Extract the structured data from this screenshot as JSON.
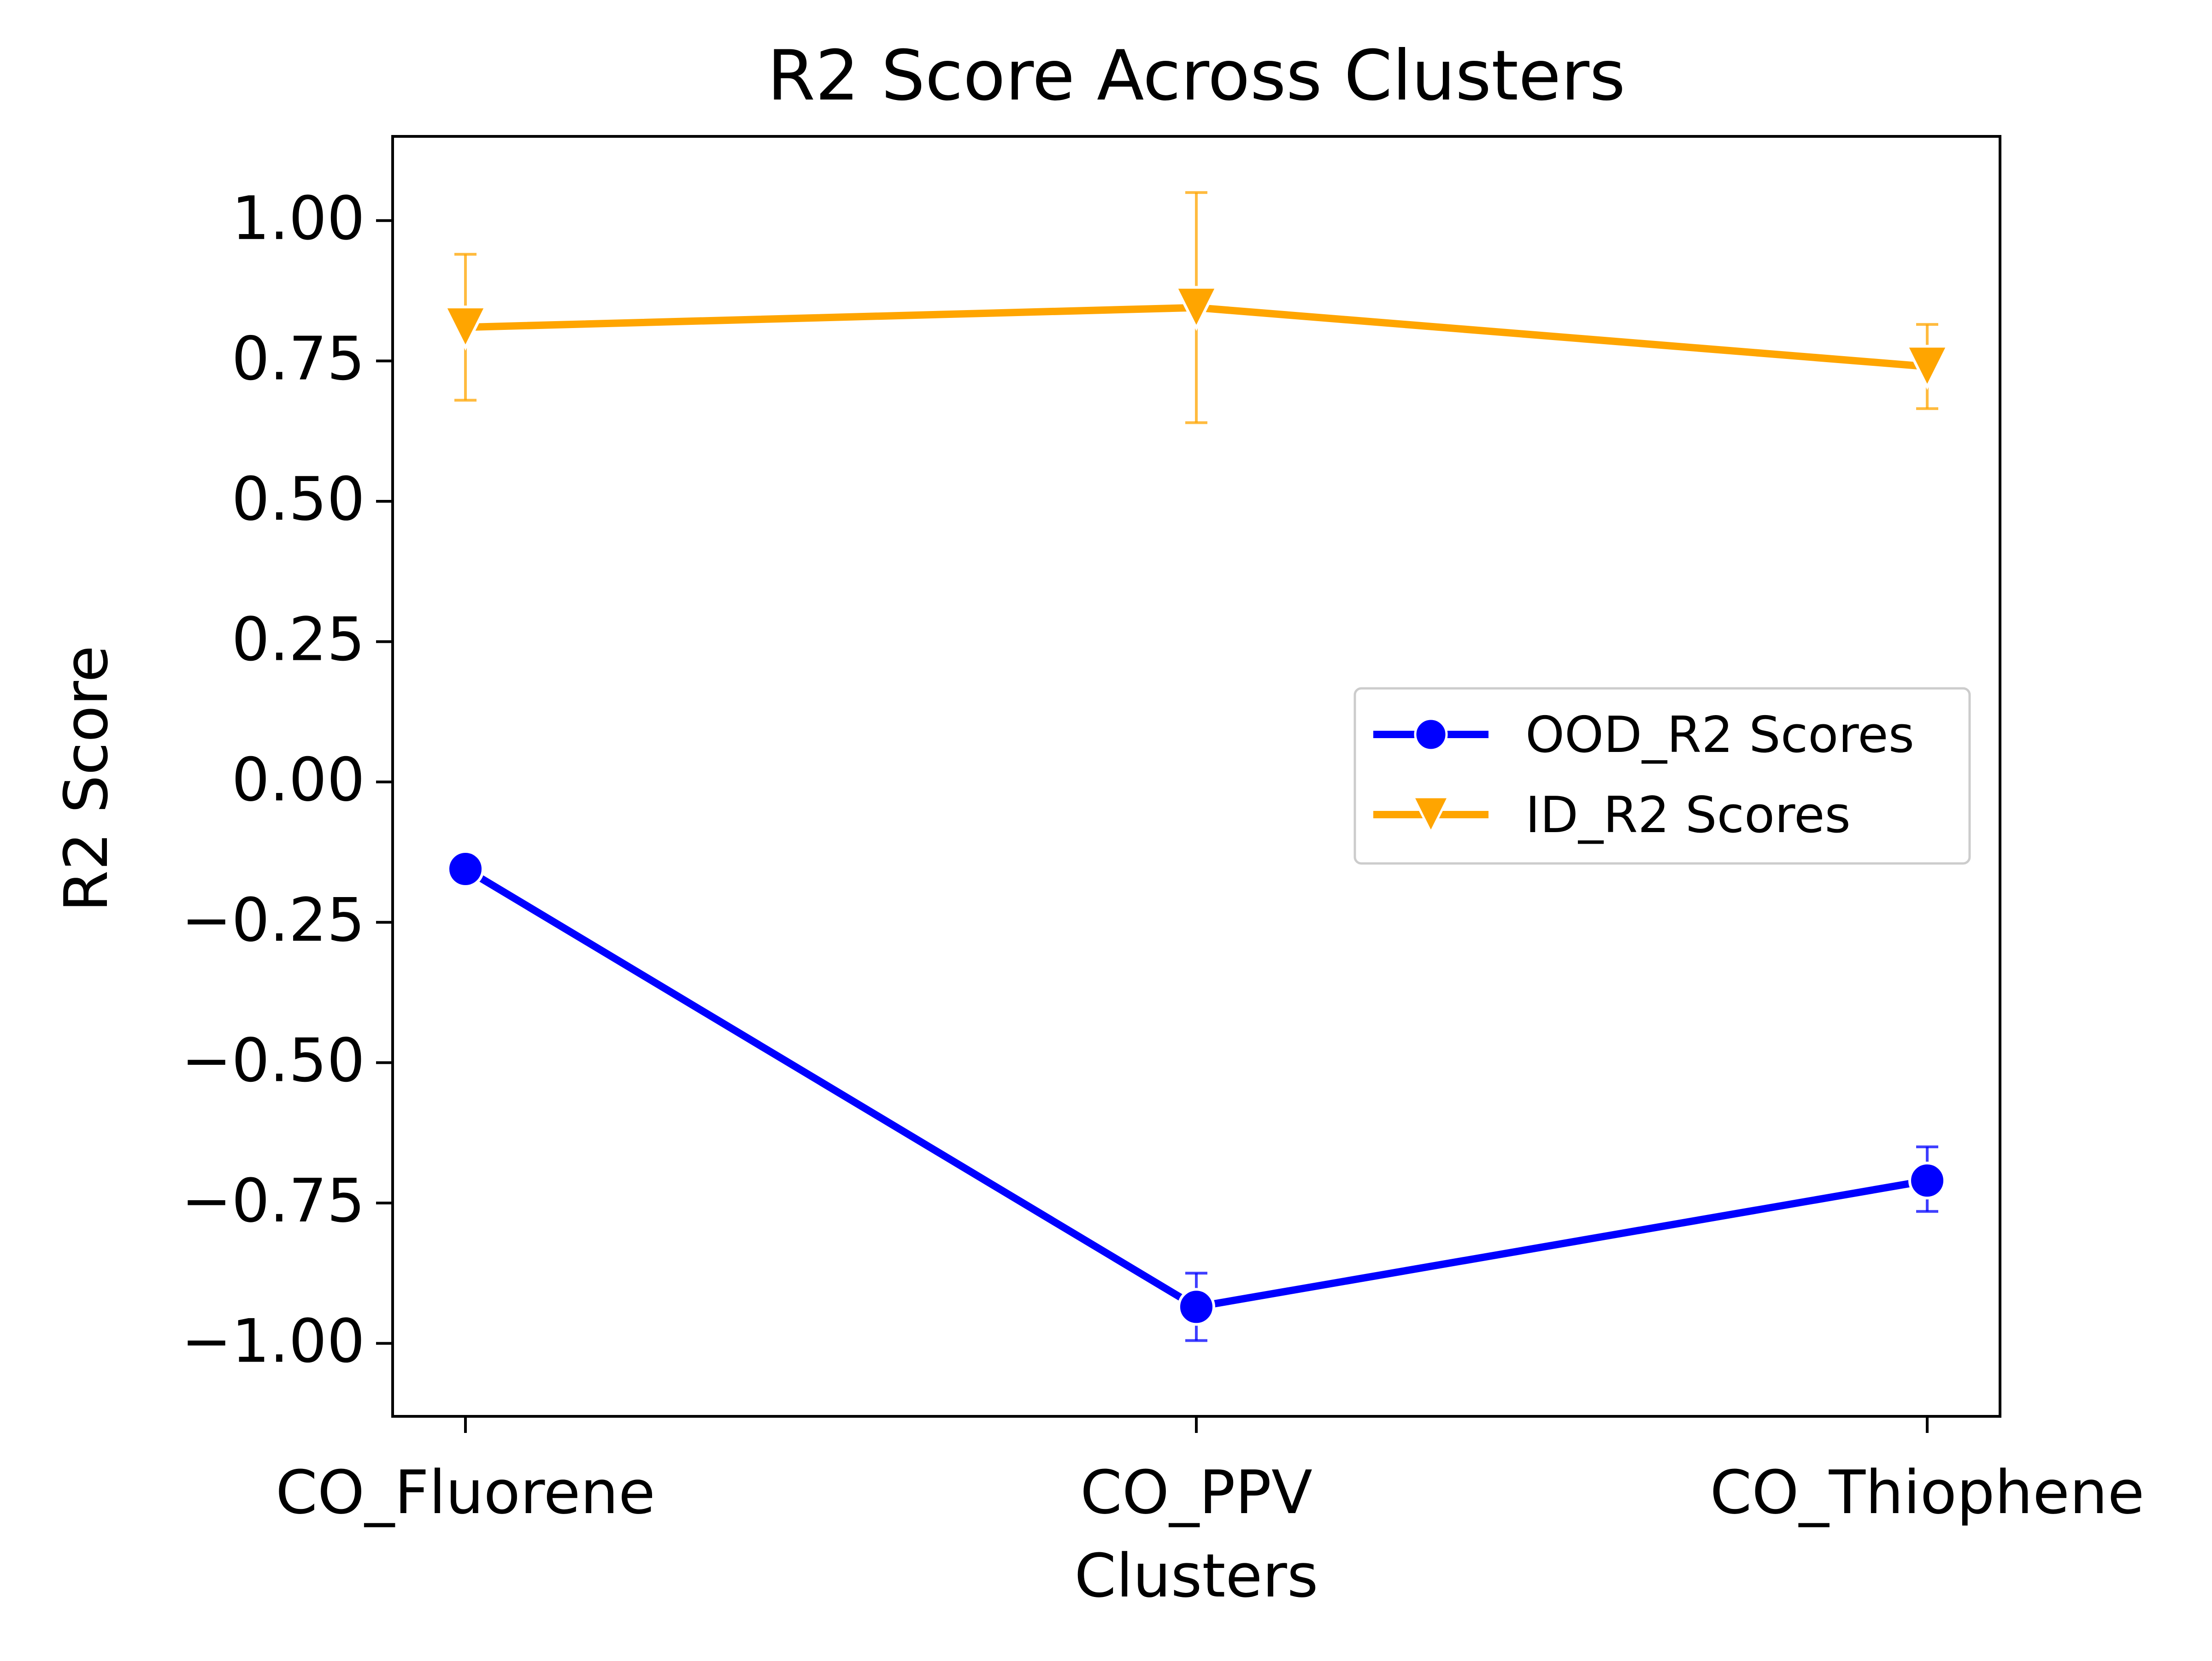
{
  "chart_data": {
    "type": "line",
    "title": "R2 Score Across Clusters",
    "xlabel": "Clusters",
    "ylabel": "R2 Score",
    "categories": [
      "CO_Fluorene",
      "CO_PPV",
      "CO_Thiophene"
    ],
    "ylim": [
      -1.13,
      1.15
    ],
    "yticks": [
      -1.0,
      -0.75,
      -0.5,
      -0.25,
      0.0,
      0.25,
      0.5,
      0.75,
      1.0
    ],
    "ytick_labels": [
      "−1.00",
      "−0.75",
      "−0.50",
      "−0.25",
      "0.00",
      "0.25",
      "0.50",
      "0.75",
      "1.00"
    ],
    "grid": false,
    "legend_position": "center-right",
    "series": [
      {
        "name": "OOD_R2 Scores",
        "color": "#0000ff",
        "marker": "circle",
        "values": [
          -0.155,
          -0.935,
          -0.71
        ],
        "error_low": [
          -0.155,
          -0.995,
          -0.765
        ],
        "error_high": [
          -0.155,
          -0.875,
          -0.65
        ]
      },
      {
        "name": "ID_R2 Scores",
        "color": "#ffa500",
        "marker": "triangle-down",
        "values": [
          0.81,
          0.845,
          0.74
        ],
        "error_low": [
          0.68,
          0.64,
          0.665
        ],
        "error_high": [
          0.94,
          1.05,
          0.815
        ]
      }
    ]
  }
}
